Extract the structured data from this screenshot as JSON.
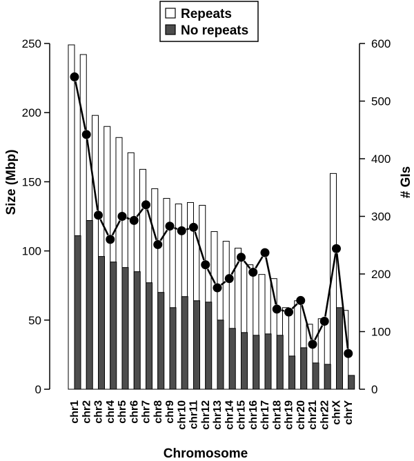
{
  "chart_data": {
    "type": "bar",
    "categories": [
      "chr1",
      "chr2",
      "chr3",
      "chr4",
      "chr5",
      "chr6",
      "chr7",
      "chr8",
      "chr9",
      "chr10",
      "chr11",
      "chr12",
      "chr13",
      "chr14",
      "chr15",
      "chr16",
      "chr17",
      "chr18",
      "chr19",
      "chr20",
      "chr21",
      "chr22",
      "chrX",
      "chrY"
    ],
    "series": [
      {
        "name": "Repeats",
        "axis": "left",
        "kind": "bar",
        "values": [
          249,
          242,
          198,
          190,
          182,
          171,
          159,
          145,
          138,
          134,
          135,
          133,
          114,
          107,
          102,
          90,
          83,
          80,
          59,
          64,
          47,
          51,
          156,
          57
        ]
      },
      {
        "name": "No repeats",
        "axis": "left",
        "kind": "bar",
        "values": [
          111,
          122,
          96,
          92,
          88,
          85,
          77,
          70,
          59,
          67,
          64,
          63,
          50,
          44,
          41,
          39,
          40,
          39,
          24,
          30,
          19,
          18,
          59,
          10
        ]
      },
      {
        "axis": "right",
        "kind": "line",
        "values": [
          542,
          442,
          302,
          260,
          300,
          293,
          320,
          251,
          283,
          275,
          281,
          216,
          176,
          192,
          229,
          203,
          237,
          139,
          134,
          154,
          78,
          118,
          244,
          62
        ]
      }
    ],
    "xlabel": "Chromosome",
    "ylabel": "Size (Mbp)",
    "y2label": "# GIs",
    "ylim": [
      0,
      250
    ],
    "y2lim": [
      0,
      600
    ],
    "yticks": [
      "0",
      "50",
      "100",
      "150",
      "200",
      "250"
    ],
    "y2ticks": [
      "0",
      "100",
      "200",
      "300",
      "400",
      "500",
      "600"
    ],
    "legend_position": "top-center",
    "grid": false,
    "colors": {
      "repeats_fill": "#ffffff",
      "no_repeats_fill": "#4d4d4d",
      "line": "#000000",
      "marker": "#000000"
    }
  }
}
